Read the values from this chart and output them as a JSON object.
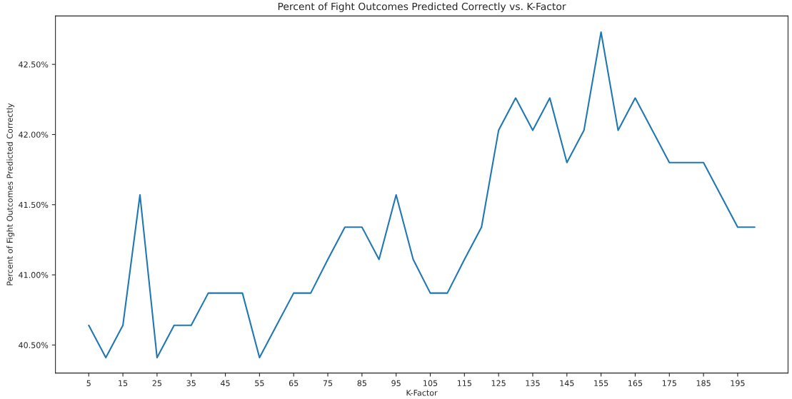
{
  "chart_data": {
    "type": "line",
    "title": "Percent of Fight Outcomes Predicted Correctly vs. K-Factor",
    "xlabel": "K-Factor",
    "ylabel": "Percent of Fight Outcomes Predicted Correctly",
    "x": [
      5,
      10,
      15,
      20,
      25,
      30,
      35,
      40,
      45,
      50,
      55,
      60,
      65,
      70,
      75,
      80,
      85,
      90,
      95,
      100,
      105,
      110,
      115,
      120,
      125,
      130,
      135,
      140,
      145,
      150,
      155,
      160,
      165,
      170,
      175,
      180,
      185,
      190,
      195,
      200
    ],
    "series": [
      {
        "color": "#1f77b4",
        "values": [
          40.64,
          40.41,
          40.64,
          41.57,
          40.41,
          40.64,
          40.64,
          40.87,
          40.87,
          40.87,
          40.41,
          40.64,
          40.87,
          40.87,
          41.11,
          41.34,
          41.34,
          41.11,
          41.57,
          41.11,
          40.87,
          40.87,
          41.11,
          41.34,
          42.03,
          42.26,
          42.03,
          42.26,
          41.8,
          42.03,
          42.73,
          42.03,
          42.26,
          42.03,
          41.8,
          41.8,
          41.8,
          41.57,
          41.34,
          41.34
        ]
      }
    ],
    "xlim": [
      -4.75,
      209.75
    ],
    "xticks": [
      5,
      15,
      25,
      35,
      45,
      55,
      65,
      75,
      85,
      95,
      105,
      115,
      125,
      135,
      145,
      155,
      165,
      175,
      185,
      195
    ],
    "ylim": [
      40.3,
      42.845
    ],
    "yticks": [
      {
        "value": 40.5,
        "label": "40.50%"
      },
      {
        "value": 41.0,
        "label": "41.00%"
      },
      {
        "value": 41.5,
        "label": "41.50%"
      },
      {
        "value": 42.0,
        "label": "42.00%"
      },
      {
        "value": 42.5,
        "label": "42.50%"
      }
    ],
    "grid": false,
    "legend": false
  }
}
